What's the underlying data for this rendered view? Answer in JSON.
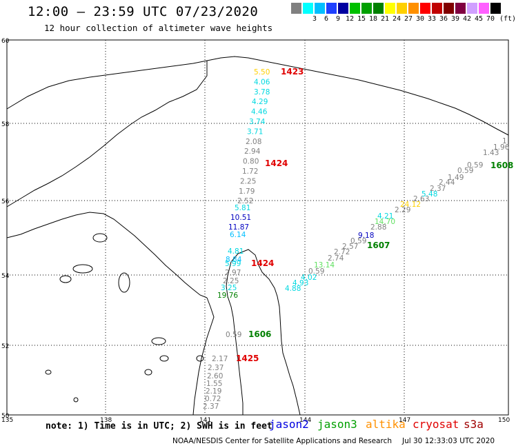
{
  "header": {
    "title": "12:00 – 23:59 UTC 07/23/2020",
    "subtitle": "12 hour collection of altimeter wave heights"
  },
  "colorbar": {
    "unit": "(ft)",
    "bins": [
      {
        "label": "",
        "color": "#808080"
      },
      {
        "label": "3",
        "color": "#00ffff"
      },
      {
        "label": "6",
        "color": "#00bfff"
      },
      {
        "label": "9",
        "color": "#1e40ff"
      },
      {
        "label": "12",
        "color": "#0000a0"
      },
      {
        "label": "15",
        "color": "#00c000"
      },
      {
        "label": "18",
        "color": "#00a000"
      },
      {
        "label": "21",
        "color": "#008000"
      },
      {
        "label": "24",
        "color": "#ffff00"
      },
      {
        "label": "27",
        "color": "#ffd000"
      },
      {
        "label": "30",
        "color": "#ff9000"
      },
      {
        "label": "33",
        "color": "#ff0000"
      },
      {
        "label": "36",
        "color": "#c00000"
      },
      {
        "label": "39",
        "color": "#800000"
      },
      {
        "label": "42",
        "color": "#800040"
      },
      {
        "label": "45",
        "color": "#d0a0ff"
      },
      {
        "label": "70",
        "color": "#ff60ff"
      },
      {
        "label": "",
        "color": "#000000"
      }
    ]
  },
  "axes": {
    "lat_labels": [
      "60",
      "58",
      "56",
      "54",
      "52",
      "50"
    ],
    "lon_labels": [
      "135",
      "138",
      "141",
      "144",
      "147",
      "150"
    ]
  },
  "tracks": [
    {
      "name": "cryosat-1423",
      "time_label": "1423",
      "time_color": "#e00000",
      "obs": [
        {
          "v": "5.50",
          "c": "#ffd000"
        },
        {
          "v": "4.06",
          "c": "#00d8e0"
        },
        {
          "v": "3.78",
          "c": "#00d8e0"
        },
        {
          "v": "4.29",
          "c": "#00d8e0"
        },
        {
          "v": "4.46",
          "c": "#00d8e0"
        },
        {
          "v": "3.74",
          "c": "#00d8e0"
        },
        {
          "v": "3.71",
          "c": "#00d8e0"
        },
        {
          "v": "2.08",
          "c": "#808080"
        },
        {
          "v": "2.94",
          "c": "#808080"
        },
        {
          "v": "0.80",
          "c": "#808080"
        },
        {
          "v": "1.72",
          "c": "#808080"
        },
        {
          "v": "2.25",
          "c": "#808080"
        },
        {
          "v": "1.79",
          "c": "#808080"
        },
        {
          "v": "2.52",
          "c": "#808080"
        }
      ]
    },
    {
      "name": "cryosat-1424",
      "time_label": "1424",
      "time_color": "#e00000",
      "obs": [
        {
          "v": "5.81",
          "c": "#00d8e0"
        },
        {
          "v": "10.51",
          "c": "#0000c0"
        },
        {
          "v": "11.87",
          "c": "#0000c0"
        },
        {
          "v": "6.14",
          "c": "#00bfff"
        },
        {
          "v": "4.81",
          "c": "#00d8e0"
        },
        {
          "v": "8.84",
          "c": "#00bfff"
        },
        {
          "v": "5.99",
          "c": "#00d8e0"
        },
        {
          "v": "2.97",
          "c": "#808080"
        },
        {
          "v": "2.25",
          "c": "#808080"
        },
        {
          "v": "3.25",
          "c": "#00d8e0"
        },
        {
          "v": "19.76",
          "c": "#008000"
        }
      ]
    },
    {
      "name": "cryosat-1425",
      "time_label": "1425",
      "time_color": "#e00000",
      "obs": [
        {
          "v": "2.17",
          "c": "#808080"
        },
        {
          "v": "2.37",
          "c": "#808080"
        },
        {
          "v": "2.60",
          "c": "#808080"
        },
        {
          "v": "1.55",
          "c": "#808080"
        },
        {
          "v": "2.19",
          "c": "#808080"
        },
        {
          "v": "0.72",
          "c": "#808080"
        },
        {
          "v": "2.37",
          "c": "#808080"
        }
      ]
    },
    {
      "name": "jason3-1606",
      "time_label": "1606",
      "time_color": "#008000",
      "obs": [
        {
          "v": "0.59",
          "c": "#808080"
        }
      ]
    },
    {
      "name": "jason3-1607",
      "time_label": "1607",
      "time_color": "#008000",
      "obs": [
        {
          "v": "4.88",
          "c": "#00d8e0"
        },
        {
          "v": "4.93",
          "c": "#00d8e0"
        },
        {
          "v": "4.02",
          "c": "#00d8e0"
        },
        {
          "v": "0.59",
          "c": "#808080"
        },
        {
          "v": "13.14",
          "c": "#60e060"
        },
        {
          "v": "2.74",
          "c": "#808080"
        },
        {
          "v": "2.72",
          "c": "#808080"
        },
        {
          "v": "2.57",
          "c": "#808080"
        },
        {
          "v": "0.59",
          "c": "#808080"
        },
        {
          "v": "9.18",
          "c": "#0000c0"
        },
        {
          "v": "2.88",
          "c": "#808080"
        },
        {
          "v": "14.70",
          "c": "#60e060"
        },
        {
          "v": "4.21",
          "c": "#00d8e0"
        },
        {
          "v": "2.29",
          "c": "#808080"
        },
        {
          "v": "24.12",
          "c": "#ffd000"
        },
        {
          "v": "2.63",
          "c": "#808080"
        },
        {
          "v": "5.48",
          "c": "#00d8e0"
        },
        {
          "v": "2.37",
          "c": "#808080"
        },
        {
          "v": "2.44",
          "c": "#808080"
        },
        {
          "v": "1.49",
          "c": "#808080"
        },
        {
          "v": "0.59",
          "c": "#808080"
        },
        {
          "v": "0.59",
          "c": "#808080"
        },
        {
          "v": "1.43",
          "c": "#808080"
        },
        {
          "v": "1.96",
          "c": "#808080"
        },
        {
          "v": "1",
          "c": "#808080"
        }
      ]
    },
    {
      "name": "jason3-1608",
      "time_label": "1608",
      "time_color": "#008000",
      "obs": []
    }
  ],
  "footer": {
    "note": "note: 1) Time is in UTC; 2) SWH is in feet",
    "satellites": [
      {
        "name": "jason2",
        "color": "#0000e0"
      },
      {
        "name": "jason3",
        "color": "#00a000"
      },
      {
        "name": "altika",
        "color": "#ff9000"
      },
      {
        "name": "cryosat",
        "color": "#e00000"
      },
      {
        "name": "s3a",
        "color": "#a00000"
      }
    ],
    "credit": "NOAA/NESDIS Center for Satellite Applications and Research",
    "generated": "Jul 30 12:33:03 UTC 2020"
  }
}
